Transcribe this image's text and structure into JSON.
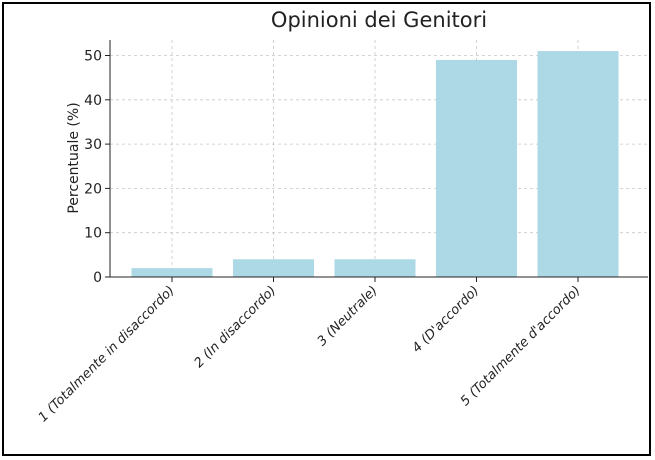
{
  "chart_data": {
    "type": "bar",
    "title": "Opinioni dei Genitori",
    "xlabel": "",
    "ylabel": "Percentuale (%)",
    "categories": [
      "1 (Totalmente in disaccordo)",
      "2 (In disaccordo)",
      "3 (Neutrale)",
      "4 (D'accordo)",
      "5 (Totalmente d'accordo)"
    ],
    "values": [
      2,
      4,
      4,
      49,
      51
    ],
    "ylim": [
      0,
      53.5
    ],
    "yticks": [
      0,
      10,
      20,
      30,
      40,
      50
    ],
    "grid": true,
    "bar_color": "#add8e6"
  }
}
